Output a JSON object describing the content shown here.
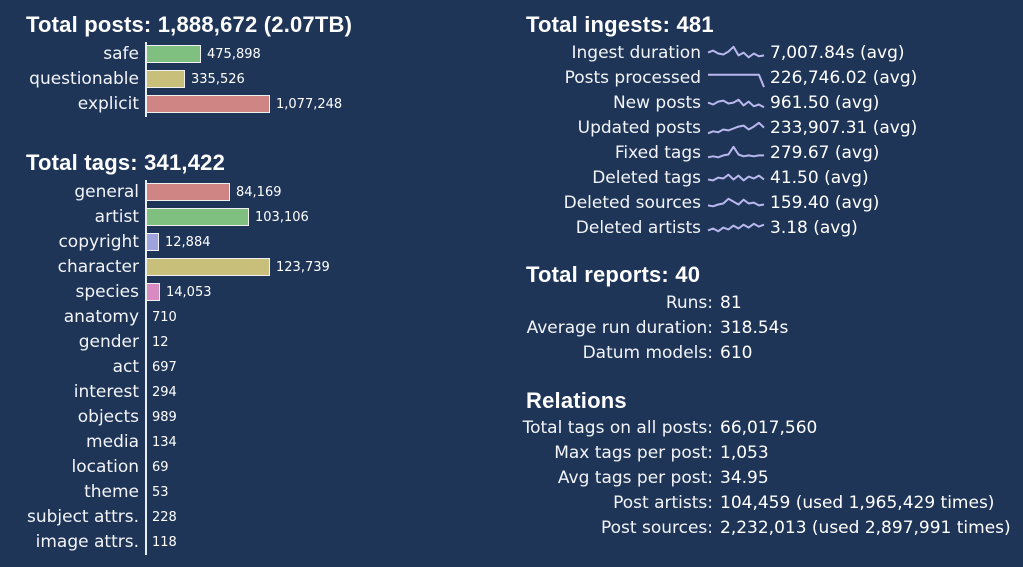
{
  "posts": {
    "heading": "Total posts: 1,888,672 (2.07TB)",
    "items": [
      {
        "label": "safe",
        "value": 475898,
        "display": "475,898",
        "color": "#7fbf7f"
      },
      {
        "label": "questionable",
        "value": 335526,
        "display": "335,526",
        "color": "#c8c07a"
      },
      {
        "label": "explicit",
        "value": 1077248,
        "display": "1,077,248",
        "color": "#d08585"
      }
    ]
  },
  "tags": {
    "heading": "Total tags: 341,422",
    "items": [
      {
        "label": "general",
        "value": 84169,
        "display": "84,169",
        "color": "#d08585"
      },
      {
        "label": "artist",
        "value": 103106,
        "display": "103,106",
        "color": "#7fbf7f"
      },
      {
        "label": "copyright",
        "value": 12884,
        "display": "12,884",
        "color": "#9fa3dd"
      },
      {
        "label": "character",
        "value": 123739,
        "display": "123,739",
        "color": "#c8c07a"
      },
      {
        "label": "species",
        "value": 14053,
        "display": "14,053",
        "color": "#d78bc2"
      },
      {
        "label": "anatomy",
        "value": 710,
        "display": "710",
        "color": "#e8ecf3"
      },
      {
        "label": "gender",
        "value": 12,
        "display": "12",
        "color": "#e8ecf3"
      },
      {
        "label": "act",
        "value": 697,
        "display": "697",
        "color": "#e8ecf3"
      },
      {
        "label": "interest",
        "value": 294,
        "display": "294",
        "color": "#e8ecf3"
      },
      {
        "label": "objects",
        "value": 989,
        "display": "989",
        "color": "#e8ecf3"
      },
      {
        "label": "media",
        "value": 134,
        "display": "134",
        "color": "#e8ecf3"
      },
      {
        "label": "location",
        "value": 69,
        "display": "69",
        "color": "#e8ecf3"
      },
      {
        "label": "theme",
        "value": 53,
        "display": "53",
        "color": "#e8ecf3"
      },
      {
        "label": "subject attrs.",
        "value": 228,
        "display": "228",
        "color": "#e8ecf3"
      },
      {
        "label": "image attrs.",
        "value": 118,
        "display": "118",
        "color": "#e8ecf3"
      }
    ]
  },
  "ingests": {
    "heading": "Total ingests: 481",
    "spark_color": "#b9b8ee",
    "items": [
      {
        "label": "Ingest duration",
        "value": "7,007.84s (avg)",
        "spark": [
          0.45,
          0.35,
          0.5,
          0.55,
          0.4,
          0.15,
          0.6,
          0.45,
          0.7,
          0.5,
          0.65,
          0.6
        ]
      },
      {
        "label": "Posts processed",
        "value": "226,746.02 (avg)",
        "spark": [
          0.3,
          0.3,
          0.3,
          0.3,
          0.3,
          0.3,
          0.3,
          0.3,
          0.3,
          0.3,
          0.3,
          0.95
        ]
      },
      {
        "label": "New posts",
        "value": "961.50 (avg)",
        "spark": [
          0.45,
          0.55,
          0.4,
          0.35,
          0.5,
          0.45,
          0.3,
          0.6,
          0.4,
          0.65,
          0.55,
          0.7
        ]
      },
      {
        "label": "Updated posts",
        "value": "233,907.31 (avg)",
        "spark": [
          0.75,
          0.65,
          0.7,
          0.55,
          0.6,
          0.5,
          0.4,
          0.35,
          0.55,
          0.4,
          0.2,
          0.45
        ]
      },
      {
        "label": "Fixed tags",
        "value": "279.67 (avg)",
        "spark": [
          0.7,
          0.65,
          0.7,
          0.6,
          0.55,
          0.15,
          0.55,
          0.65,
          0.6,
          0.65,
          0.6,
          0.6
        ]
      },
      {
        "label": "Deleted tags",
        "value": "41.50 (avg)",
        "spark": [
          0.55,
          0.6,
          0.45,
          0.5,
          0.3,
          0.55,
          0.35,
          0.6,
          0.4,
          0.5,
          0.35,
          0.55
        ]
      },
      {
        "label": "Deleted sources",
        "value": "159.40 (avg)",
        "spark": [
          0.6,
          0.65,
          0.55,
          0.5,
          0.25,
          0.4,
          0.55,
          0.3,
          0.5,
          0.45,
          0.6,
          0.55
        ]
      },
      {
        "label": "Deleted artists",
        "value": "3.18 (avg)",
        "spark": [
          0.6,
          0.5,
          0.65,
          0.45,
          0.55,
          0.35,
          0.5,
          0.3,
          0.45,
          0.25,
          0.4,
          0.3
        ]
      }
    ]
  },
  "reports": {
    "heading": "Total reports: 40",
    "items": [
      {
        "key": "Runs:",
        "value": "81"
      },
      {
        "key": "Average run duration:",
        "value": "318.54s"
      },
      {
        "key": "Datum models:",
        "value": "610"
      }
    ]
  },
  "relations": {
    "heading": "Relations",
    "items": [
      {
        "key": "Total tags on all posts:",
        "value": "66,017,560"
      },
      {
        "key": "Max tags per post:",
        "value": "1,053"
      },
      {
        "key": "Avg tags per post:",
        "value": "34.95"
      },
      {
        "key": "Post artists:",
        "value": "104,459 (used 1,965,429 times)"
      },
      {
        "key": "Post sources:",
        "value": "2,232,013 (used 2,897,991 times)"
      }
    ]
  }
}
